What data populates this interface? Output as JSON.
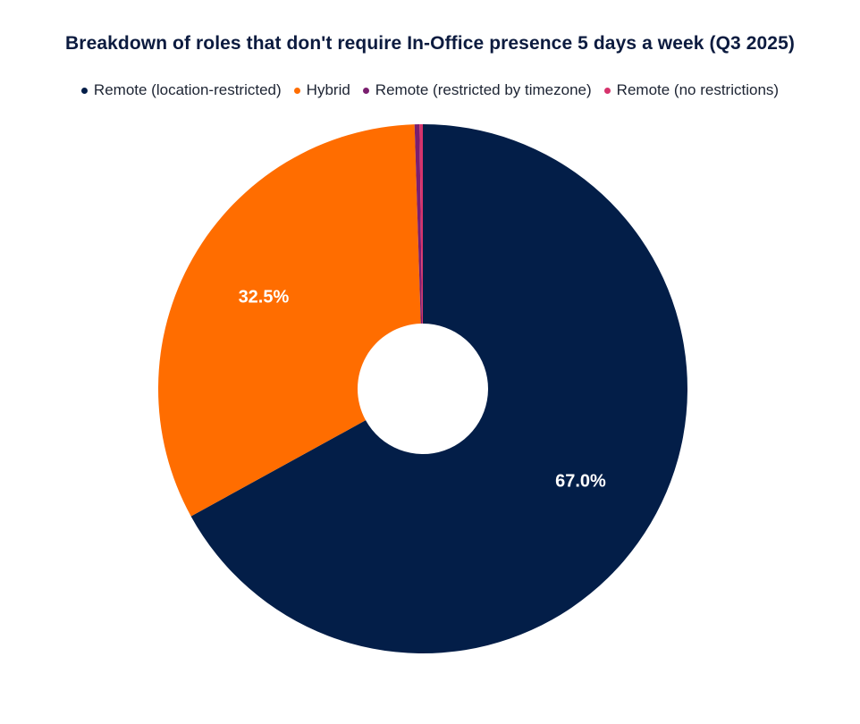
{
  "chart_data": {
    "type": "pie",
    "title": "Breakdown of roles that don't require In-Office presence 5 days a week (Q3 2025)",
    "legend_position": "top",
    "donut": true,
    "slices": [
      {
        "name": "Remote (location-restricted)",
        "value": 67.0,
        "label": "67.0%",
        "color": "#031e48"
      },
      {
        "name": "Hybrid",
        "value": 32.5,
        "label": "32.5%",
        "color": "#ff6d00"
      },
      {
        "name": "Remote (restricted by timezone)",
        "value": 0.3,
        "label": "",
        "color": "#7a1f6f"
      },
      {
        "name": "Remote (no restrictions)",
        "value": 0.2,
        "label": "",
        "color": "#d6336c"
      }
    ]
  }
}
